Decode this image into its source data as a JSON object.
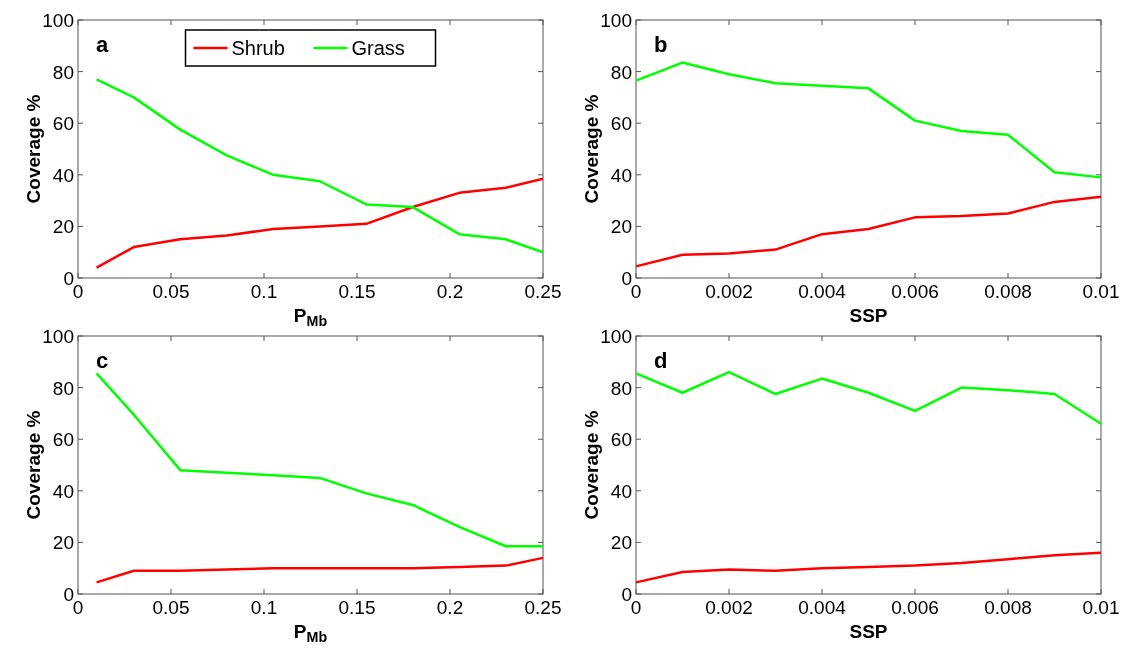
{
  "chart_data": [
    {
      "type": "line",
      "annotations": [
        "a"
      ],
      "xlabel": "P$_{Mb}$",
      "ylabel": "Coverage %",
      "x": [
        0.01,
        0.03,
        0.055,
        0.08,
        0.105,
        0.13,
        0.155,
        0.18,
        0.205,
        0.23,
        0.25
      ],
      "xlim": [
        0,
        0.25
      ],
      "xticks": [
        0,
        0.05,
        0.1,
        0.15,
        0.2,
        0.25
      ],
      "ylim": [
        0,
        100
      ],
      "yticks": [
        0,
        20,
        40,
        60,
        80,
        100
      ],
      "legend": "top",
      "grid": false,
      "series": [
        {
          "name": "Shrub",
          "color": "#ff0000",
          "values": [
            4,
            12,
            15,
            16.5,
            19,
            20,
            21,
            27.5,
            33,
            35,
            38.5
          ]
        },
        {
          "name": "Grass",
          "color": "#00ff00",
          "values": [
            77,
            70,
            57.5,
            47.5,
            40,
            37.5,
            28.5,
            27.5,
            17,
            15,
            10
          ]
        }
      ]
    },
    {
      "type": "line",
      "annotations": [
        "b"
      ],
      "xlabel": "SSP",
      "ylabel": "Coverage %",
      "x": [
        0,
        0.001,
        0.002,
        0.003,
        0.004,
        0.005,
        0.006,
        0.007,
        0.008,
        0.009,
        0.01
      ],
      "xlim": [
        0,
        0.01
      ],
      "xticks": [
        0,
        0.002,
        0.004,
        0.006,
        0.008,
        0.01
      ],
      "ylim": [
        0,
        100
      ],
      "yticks": [
        0,
        20,
        40,
        60,
        80,
        100
      ],
      "grid": false,
      "series": [
        {
          "color": "#ff0000",
          "values": [
            4.5,
            9,
            9.5,
            11,
            17,
            19,
            23.5,
            24,
            25,
            29.5,
            31.5
          ]
        },
        {
          "color": "#00ff00",
          "values": [
            76.5,
            83.5,
            79,
            75.5,
            74.5,
            73.5,
            61,
            57,
            55.5,
            41,
            39
          ]
        }
      ]
    },
    {
      "type": "line",
      "annotations": [
        "c"
      ],
      "xlabel": "P$_{Mb}$",
      "ylabel": "Coverage %",
      "x": [
        0.01,
        0.03,
        0.055,
        0.08,
        0.105,
        0.13,
        0.155,
        0.18,
        0.205,
        0.23,
        0.25
      ],
      "xlim": [
        0,
        0.25
      ],
      "xticks": [
        0,
        0.05,
        0.1,
        0.15,
        0.2,
        0.25
      ],
      "ylim": [
        0,
        100
      ],
      "yticks": [
        0,
        20,
        40,
        60,
        80,
        100
      ],
      "grid": false,
      "series": [
        {
          "color": "#ff0000",
          "values": [
            4.5,
            9,
            9,
            9.5,
            10,
            10,
            10,
            10,
            10.5,
            11,
            14
          ]
        },
        {
          "color": "#00ff00",
          "values": [
            85.5,
            69.5,
            48,
            47,
            46,
            45,
            39,
            34.5,
            26,
            18.5,
            18.5
          ]
        }
      ]
    },
    {
      "type": "line",
      "annotations": [
        "d"
      ],
      "xlabel": "SSP",
      "ylabel": "Coverage %",
      "x": [
        0,
        0.001,
        0.002,
        0.003,
        0.004,
        0.005,
        0.006,
        0.007,
        0.008,
        0.009,
        0.01
      ],
      "xlim": [
        0,
        0.01
      ],
      "xticks": [
        0,
        0.002,
        0.004,
        0.006,
        0.008,
        0.01
      ],
      "ylim": [
        0,
        100
      ],
      "yticks": [
        0,
        20,
        40,
        60,
        80,
        100
      ],
      "grid": false,
      "series": [
        {
          "color": "#ff0000",
          "values": [
            4.5,
            8.5,
            9.5,
            9,
            10,
            10.5,
            11,
            12,
            13.5,
            15,
            16
          ]
        },
        {
          "color": "#00ff00",
          "values": [
            85.5,
            78,
            86,
            77.5,
            83.5,
            78,
            71,
            80,
            79,
            77.5,
            66
          ]
        }
      ]
    }
  ]
}
